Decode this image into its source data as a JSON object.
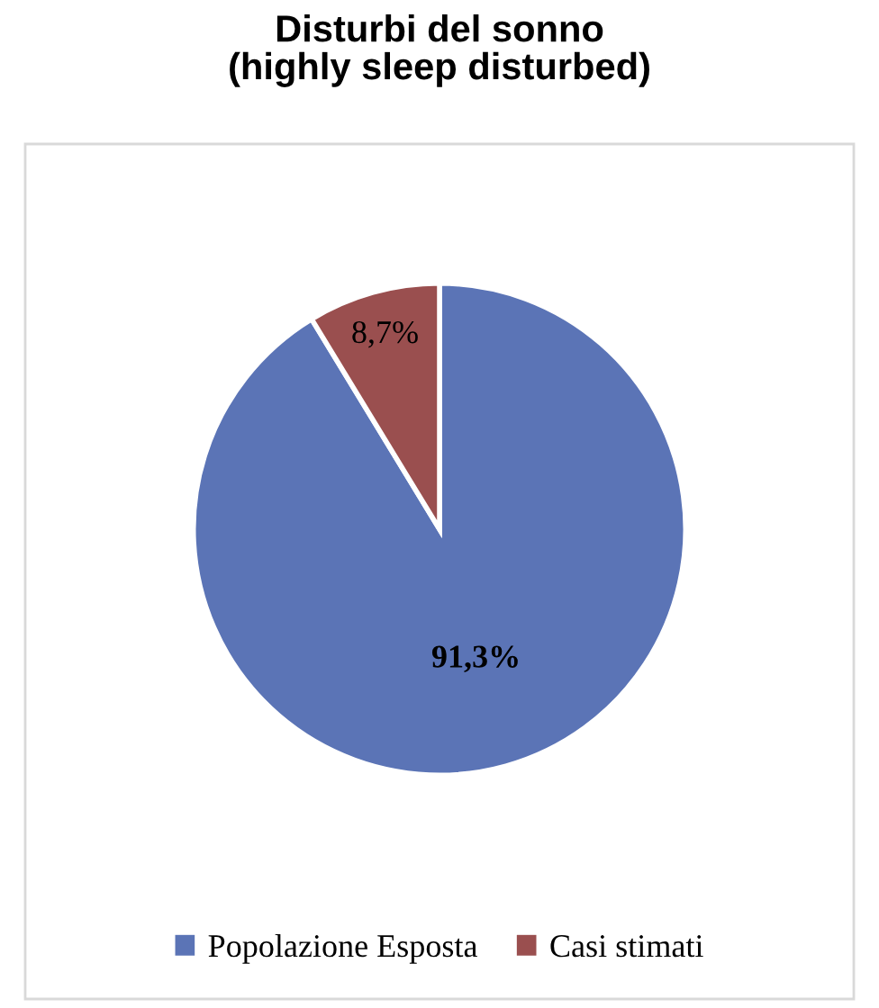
{
  "chart_data": {
    "type": "pie",
    "title": "Disturbi del sonno\n(highly sleep disturbed)",
    "categories": [
      "Popolazione Esposta",
      "Casi stimati"
    ],
    "values": [
      91.3,
      8.7
    ],
    "colors": [
      "#5b74b6",
      "#9a4f4f"
    ],
    "value_labels": [
      "91,3%",
      "8,7%"
    ],
    "legend": "bottom"
  }
}
